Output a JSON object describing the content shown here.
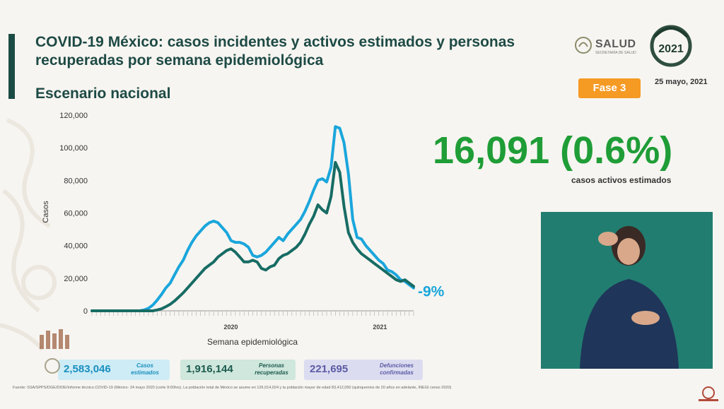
{
  "header": {
    "title": "COVID-19 México: casos incidentes y activos estimados y personas recuperadas por semana epidemiológica",
    "subtitle": "Escenario nacional",
    "logo_salud": "SALUD",
    "logo_salud_small": "SECRETARÍA DE SALUD",
    "logo_year": "2021",
    "fase": "Fase 3",
    "date": "25 mayo, 2021"
  },
  "highlight": {
    "value": "16,091 (0.6%)",
    "caption": "casos activos estimados",
    "change": "-9%"
  },
  "stats": [
    {
      "value": "2,583,046",
      "label": "Casos estimados"
    },
    {
      "value": "1,916,144",
      "label": "Personas recuperadas"
    },
    {
      "value": "221,695",
      "label": "Defunciones confirmadas"
    }
  ],
  "source": "Fuente: SSA/SPPS/DGE/DIOE/Informe técnico.COVID-19 (México- 24 mayo 2020 (corte 9:00hrs). La población total de México se asume en 126,014,024 y la población mayor de edad 83,412,050 (quinquenios de 20 años en adelante, INEGI censo 2020)",
  "colors": {
    "series_light": "#1aa6dc",
    "series_dark": "#176c64",
    "accent_green": "#1f9d37",
    "fase_orange": "#f59a23"
  },
  "chart_data": {
    "type": "line",
    "ylabel": "Casos",
    "xlabel": "Semana epidemiológica",
    "ylim": [
      0,
      120000
    ],
    "yticks": [
      "0",
      "20,000",
      "40,000",
      "60,000",
      "80,000",
      "100,000",
      "120,000"
    ],
    "year_labels": [
      "2020",
      "2021"
    ],
    "grid": false,
    "series": [
      {
        "color": "#1aa6dc",
        "values": [
          0,
          0,
          0,
          0,
          0,
          0,
          0,
          0,
          0,
          0,
          0,
          0,
          500,
          1500,
          3500,
          6500,
          10000,
          14000,
          17000,
          22000,
          27000,
          31000,
          37000,
          42000,
          46000,
          49000,
          52000,
          54000,
          55000,
          54000,
          51000,
          48000,
          43000,
          42000,
          42000,
          41000,
          39000,
          34000,
          33000,
          34000,
          36000,
          39000,
          42000,
          45000,
          43000,
          47000,
          50000,
          53000,
          56000,
          61000,
          67000,
          74000,
          80000,
          81000,
          79000,
          88000,
          113000,
          112000,
          103000,
          84000,
          56000,
          45000,
          44000,
          40000,
          37000,
          34000,
          31000,
          29000,
          25000,
          24000,
          22000,
          19000,
          18000,
          16000,
          14000
        ]
      },
      {
        "color": "#176c64",
        "values": [
          0,
          0,
          0,
          0,
          0,
          0,
          0,
          0,
          0,
          0,
          0,
          0,
          0,
          0,
          0,
          500,
          1200,
          2500,
          4000,
          6000,
          8500,
          11000,
          14000,
          17000,
          20000,
          23000,
          26000,
          28000,
          30000,
          33000,
          35000,
          37000,
          38000,
          36000,
          33000,
          30000,
          30000,
          31000,
          30000,
          26000,
          25000,
          27000,
          28000,
          32000,
          34000,
          35000,
          37000,
          39000,
          42000,
          47000,
          53000,
          58000,
          65000,
          62000,
          60000,
          70000,
          91000,
          85000,
          64000,
          48000,
          42000,
          38000,
          35000,
          33000,
          31000,
          29000,
          27000,
          25000,
          23000,
          21000,
          19000,
          18000,
          19000,
          17000,
          15000
        ]
      }
    ]
  }
}
